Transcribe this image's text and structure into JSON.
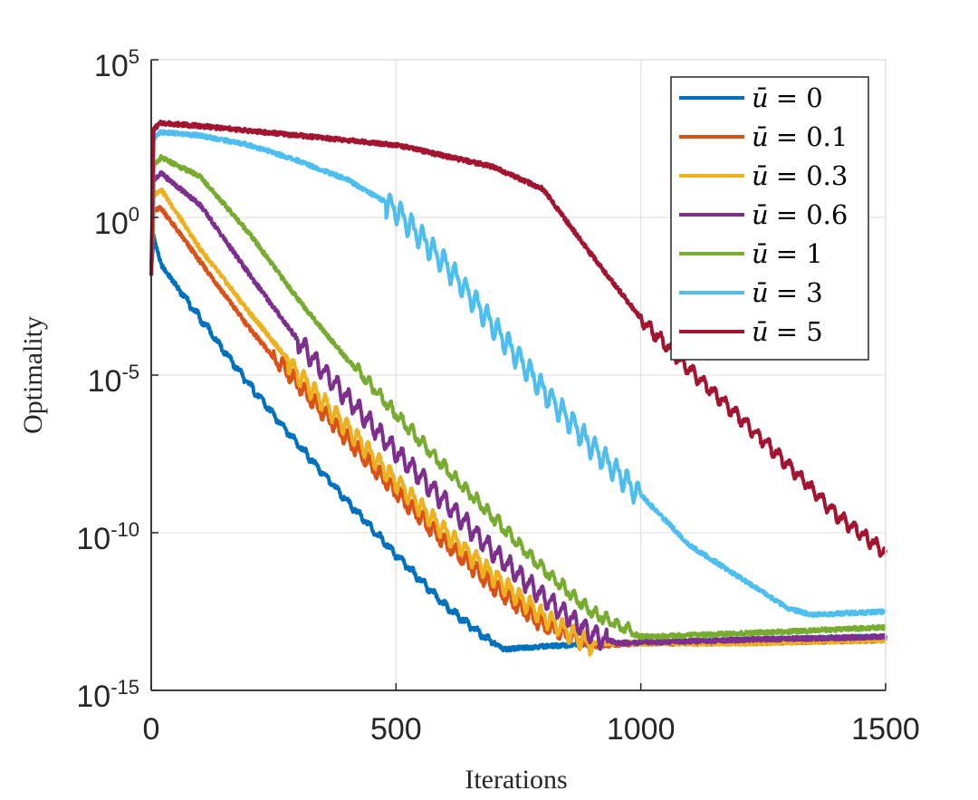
{
  "chart_data": {
    "type": "line",
    "xlabel": "Iterations",
    "ylabel": "Optimality",
    "xlim": [
      0,
      1500
    ],
    "ylim_log10": [
      -15,
      5
    ],
    "yscale": "log",
    "grid": true,
    "legend_position": "top-right",
    "x_ticks": [
      {
        "value": 0,
        "label": "0"
      },
      {
        "value": 500,
        "label": "500"
      },
      {
        "value": 1000,
        "label": "1000"
      },
      {
        "value": 1500,
        "label": "1500"
      }
    ],
    "y_ticks": [
      {
        "exp": 5,
        "base": "10",
        "sup": "5"
      },
      {
        "exp": 0,
        "base": "10",
        "sup": "0"
      },
      {
        "exp": -5,
        "base": "10",
        "sup": "-5"
      },
      {
        "exp": -10,
        "base": "10",
        "sup": "-10"
      },
      {
        "exp": -15,
        "base": "10",
        "sup": "-15"
      }
    ],
    "series": [
      {
        "name": "ū = 0",
        "label_var": "ū",
        "label_val": "= 0",
        "color": "#0072BD",
        "points": [
          [
            0,
            -1.8
          ],
          [
            5,
            -0.6
          ],
          [
            20,
            -1.5
          ],
          [
            100,
            -3.2
          ],
          [
            200,
            -5.3
          ],
          [
            300,
            -7.2
          ],
          [
            400,
            -9.0
          ],
          [
            500,
            -10.7
          ],
          [
            600,
            -12.3
          ],
          [
            680,
            -13.3
          ],
          [
            720,
            -13.7
          ],
          [
            800,
            -13.6
          ],
          [
            1000,
            -13.5
          ],
          [
            1200,
            -13.4
          ],
          [
            1500,
            -13.3
          ]
        ],
        "osc_start": 60,
        "osc_end": 700,
        "osc_amp": 0.12
      },
      {
        "name": "ū = 0.1",
        "label_var": "ū",
        "label_val": "= 0.1",
        "color": "#D95319",
        "points": [
          [
            0,
            -1.8
          ],
          [
            5,
            0.2
          ],
          [
            20,
            0.3
          ],
          [
            100,
            -1.4
          ],
          [
            200,
            -3.5
          ],
          [
            300,
            -5.4
          ],
          [
            400,
            -7.1
          ],
          [
            500,
            -8.8
          ],
          [
            600,
            -10.4
          ],
          [
            700,
            -11.8
          ],
          [
            800,
            -13.0
          ],
          [
            900,
            -13.6
          ],
          [
            1000,
            -13.5
          ],
          [
            1200,
            -13.5
          ],
          [
            1500,
            -13.4
          ]
        ],
        "osc_start": 250,
        "osc_end": 880,
        "osc_amp": 0.35
      },
      {
        "name": "ū = 0.3",
        "label_var": "ū",
        "label_val": "= 0.3",
        "color": "#EDB120",
        "points": [
          [
            0,
            -1.8
          ],
          [
            5,
            0.7
          ],
          [
            20,
            0.9
          ],
          [
            100,
            -1.0
          ],
          [
            200,
            -3.0
          ],
          [
            300,
            -4.9
          ],
          [
            400,
            -6.6
          ],
          [
            500,
            -8.3
          ],
          [
            600,
            -9.9
          ],
          [
            700,
            -11.3
          ],
          [
            800,
            -12.6
          ],
          [
            900,
            -13.5
          ],
          [
            1000,
            -13.5
          ],
          [
            1200,
            -13.5
          ],
          [
            1500,
            -13.4
          ]
        ],
        "osc_start": 280,
        "osc_end": 900,
        "osc_amp": 0.4
      },
      {
        "name": "ū = 0.6",
        "label_var": "ū",
        "label_val": "= 0.6",
        "color": "#7E2F8E",
        "points": [
          [
            0,
            -1.8
          ],
          [
            5,
            1.2
          ],
          [
            20,
            1.4
          ],
          [
            100,
            0.4
          ],
          [
            200,
            -1.8
          ],
          [
            300,
            -3.9
          ],
          [
            400,
            -5.7
          ],
          [
            500,
            -7.4
          ],
          [
            600,
            -9.0
          ],
          [
            700,
            -10.6
          ],
          [
            800,
            -12.0
          ],
          [
            900,
            -13.2
          ],
          [
            950,
            -13.5
          ],
          [
            1200,
            -13.4
          ],
          [
            1500,
            -13.3
          ]
        ],
        "osc_start": 300,
        "osc_end": 930,
        "osc_amp": 0.4
      },
      {
        "name": "ū = 1",
        "label_var": "ū",
        "label_val": "= 1",
        "color": "#77AC30",
        "points": [
          [
            0,
            -1.8
          ],
          [
            5,
            1.6
          ],
          [
            20,
            1.9
          ],
          [
            100,
            1.3
          ],
          [
            200,
            -0.5
          ],
          [
            300,
            -2.6
          ],
          [
            400,
            -4.5
          ],
          [
            500,
            -6.3
          ],
          [
            600,
            -8.0
          ],
          [
            700,
            -9.6
          ],
          [
            800,
            -11.2
          ],
          [
            900,
            -12.6
          ],
          [
            1000,
            -13.3
          ],
          [
            1200,
            -13.2
          ],
          [
            1500,
            -13.0
          ]
        ],
        "osc_start": 420,
        "osc_end": 990,
        "osc_amp": 0.25
      },
      {
        "name": "ū = 3",
        "label_var": "ū",
        "label_val": "= 3",
        "color": "#4DBEEE",
        "points": [
          [
            0,
            -1.8
          ],
          [
            5,
            2.5
          ],
          [
            20,
            2.7
          ],
          [
            100,
            2.6
          ],
          [
            200,
            2.3
          ],
          [
            300,
            1.8
          ],
          [
            400,
            1.2
          ],
          [
            500,
            0.3
          ],
          [
            600,
            -1.4
          ],
          [
            700,
            -3.4
          ],
          [
            800,
            -5.4
          ],
          [
            900,
            -7.2
          ],
          [
            1000,
            -8.8
          ],
          [
            1100,
            -10.4
          ],
          [
            1200,
            -11.4
          ],
          [
            1300,
            -12.4
          ],
          [
            1350,
            -12.6
          ],
          [
            1500,
            -12.5
          ]
        ],
        "osc_start": 480,
        "osc_end": 1000,
        "osc_amp": 0.5
      },
      {
        "name": "ū = 5",
        "label_var": "ū",
        "label_val": "= 5",
        "color": "#A2142F",
        "points": [
          [
            0,
            -1.8
          ],
          [
            5,
            2.8
          ],
          [
            20,
            3.0
          ],
          [
            100,
            2.9
          ],
          [
            300,
            2.6
          ],
          [
            500,
            2.3
          ],
          [
            700,
            1.6
          ],
          [
            800,
            0.9
          ],
          [
            900,
            -1.2
          ],
          [
            1000,
            -3.2
          ],
          [
            1100,
            -4.8
          ],
          [
            1200,
            -6.3
          ],
          [
            1300,
            -7.8
          ],
          [
            1400,
            -9.4
          ],
          [
            1500,
            -10.6
          ]
        ],
        "osc_start": 1000,
        "osc_end": 1500,
        "osc_amp": 0.25
      }
    ]
  }
}
